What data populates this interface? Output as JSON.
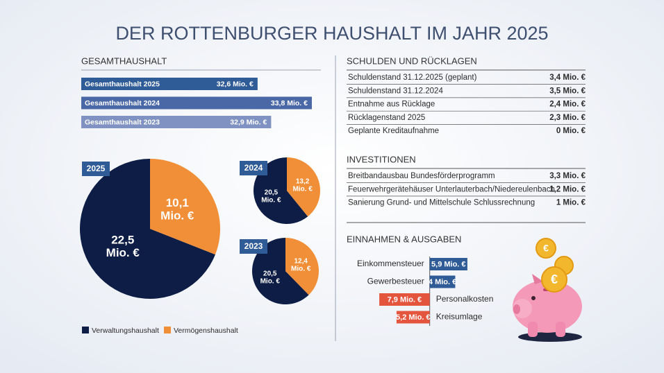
{
  "title": "DER ROTTENBURGER HAUSHALT IM JAHR 2025",
  "chart_data": [
    {
      "type": "bar",
      "title": "GESAMTHAUSHALT",
      "categories": [
        "Gesamthaushalt 2025",
        "Gesamthaushalt 2024",
        "Gesamthaushalt 2023"
      ],
      "values": [
        32.6,
        33.8,
        32.9
      ],
      "value_labels": [
        "32,6 Mio. €",
        "33,8 Mio. €",
        "32,9 Mio. €"
      ],
      "colors": [
        "#2f5b96",
        "#4b68a6",
        "#7f92c2"
      ],
      "xlim": [
        28.7,
        34.0
      ]
    },
    {
      "type": "pie",
      "title": "2025",
      "categories": [
        "Verwaltungshaushalt",
        "Vermögenshaushalt"
      ],
      "values": [
        22.5,
        10.1
      ],
      "value_labels": [
        "22,5 Mio. €",
        "10,1 Mio. €"
      ],
      "colors": [
        "#0e1d45",
        "#f08f37"
      ]
    },
    {
      "type": "pie",
      "title": "2024",
      "categories": [
        "Verwaltungshaushalt",
        "Vermögenshaushalt"
      ],
      "values": [
        20.5,
        13.2
      ],
      "value_labels": [
        "20,5 Mio. €",
        "13,2 Mio. €"
      ],
      "colors": [
        "#0e1d45",
        "#f08f37"
      ]
    },
    {
      "type": "pie",
      "title": "2023",
      "categories": [
        "Verwaltungshaushalt",
        "Vermögenshaushalt"
      ],
      "values": [
        20.5,
        12.4
      ],
      "value_labels": [
        "20,5 Mio. €",
        "12,4 Mio. €"
      ],
      "colors": [
        "#0e1d45",
        "#f08f37"
      ]
    },
    {
      "type": "diverging-bar",
      "title": "EINNAHMEN & AUSGABEN",
      "categories": [
        "Einkommensteuer",
        "Gewerbesteuer",
        "Personalkosten",
        "Kreisumlage"
      ],
      "values": [
        5.9,
        4,
        -7.9,
        -5.2
      ],
      "value_labels": [
        "5,9 Mio. €",
        "4 Mio. €",
        "7,9 Mio. €",
        "5,2 Mio. €"
      ],
      "colors": [
        "#2f5b96",
        "#2f5b96",
        "#e4553d",
        "#e4553d"
      ],
      "xlim": [
        -9,
        7
      ]
    }
  ],
  "tables": [
    {
      "title": "SCHULDEN UND RÜCKLAGEN",
      "rows": [
        [
          "Schuldenstand 31.12.2025 (geplant)",
          "3,4 Mio. €"
        ],
        [
          "Schuldenstand 31.12.2024",
          "3,5 Mio. €"
        ],
        [
          "Entnahme aus Rücklage",
          "2,4 Mio. €"
        ],
        [
          "Rücklagenstand 2025",
          "2,3 Mio. €"
        ],
        [
          "Geplante Kreditaufnahme",
          "0 Mio. €"
        ]
      ]
    },
    {
      "title": "INVESTITIONEN",
      "rows": [
        [
          "Breitbandausbau Bundesförderprogramm",
          "3,3 Mio. €"
        ],
        [
          "Feuerwehrgerätehäuser Unterlauterbach/Niedereulenbach",
          "1,2 Mio. €"
        ],
        [
          "Sanierung Grund- und Mittelschule Schlussrechnung",
          "1 Mio. €"
        ]
      ]
    }
  ]
}
